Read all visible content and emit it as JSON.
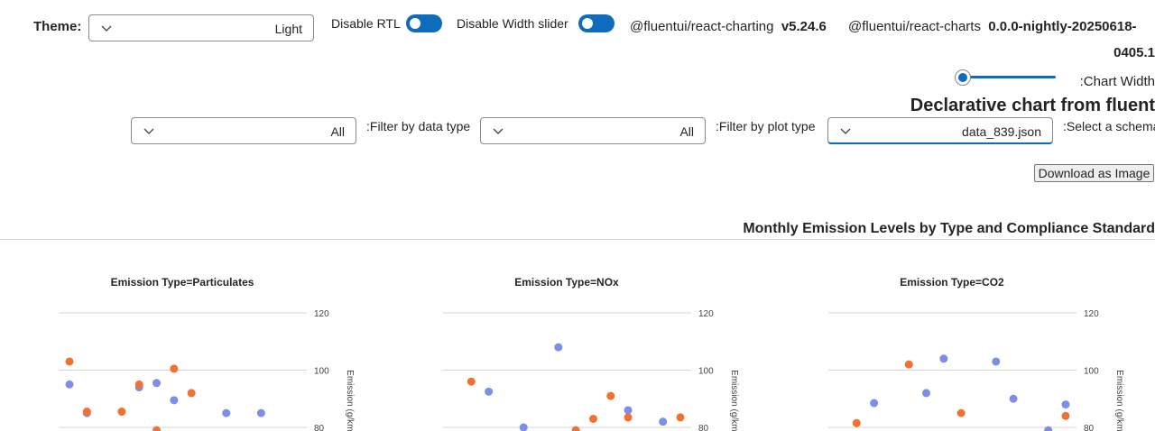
{
  "controls": {
    "theme_label": "Theme:",
    "theme_value": "Light",
    "rtl_label": "Disable RTL",
    "width_slider_label": "Disable Width slider",
    "pkg1_name": "@fluentui/react-charting",
    "pkg1_version": "v5.24.6",
    "pkg2_name": "@fluentui/react-charts",
    "pkg2_version_line1": "0.0.0-nightly-20250618-",
    "pkg2_version_line2": "0405.1",
    "chart_width_label": ":Chart Width",
    "heading": "Declarative chart from fluent",
    "filter_data_type_label": ":Filter by data type",
    "filter_data_type_value": "All",
    "filter_plot_type_label": ":Filter by plot type",
    "filter_plot_type_value": "All",
    "schema_label": ":Select a schema",
    "schema_value": "data_839.json",
    "download_label": "Download as Image"
  },
  "colors": {
    "accent": "#0f6cbd",
    "series_a": "#7b8ee8",
    "series_b": "#f07130"
  },
  "chart_data": {
    "type": "scatter",
    "title": "Monthly Emission Levels by Type and Compliance Standard",
    "ylabel": "Emission (g/km)",
    "ylim": [
      80,
      120
    ],
    "yticks": [
      120,
      100,
      80
    ],
    "panels": [
      {
        "title": "Emission Type=Particulates",
        "series": [
          {
            "color": "#7b8ee8",
            "points": [
              [
                1,
                95
              ],
              [
                2,
                85
              ],
              [
                5,
                94
              ],
              [
                6,
                95.5
              ],
              [
                7,
                89.5
              ],
              [
                10,
                85
              ],
              [
                12,
                85
              ]
            ]
          },
          {
            "color": "#f07130",
            "points": [
              [
                1,
                103
              ],
              [
                2,
                85.5
              ],
              [
                4,
                85.5
              ],
              [
                5,
                95
              ],
              [
                6,
                79
              ],
              [
                7,
                100.5
              ],
              [
                8,
                92
              ]
            ]
          }
        ]
      },
      {
        "title": "Emission Type=NOx",
        "series": [
          {
            "color": "#7b8ee8",
            "points": [
              [
                3,
                92.5
              ],
              [
                5,
                80
              ],
              [
                7,
                108
              ],
              [
                11,
                86
              ],
              [
                13,
                82
              ]
            ]
          },
          {
            "color": "#f07130",
            "points": [
              [
                2,
                96
              ],
              [
                8,
                79
              ],
              [
                9,
                83
              ],
              [
                10,
                91
              ],
              [
                11,
                83.5
              ],
              [
                14,
                83.5
              ]
            ]
          }
        ]
      },
      {
        "title": "Emission Type=CO2",
        "series": [
          {
            "color": "#7b8ee8",
            "points": [
              [
                3,
                88.5
              ],
              [
                6,
                92
              ],
              [
                7,
                104
              ],
              [
                10,
                103
              ],
              [
                11,
                90
              ],
              [
                13,
                79
              ],
              [
                14,
                88
              ]
            ]
          },
          {
            "color": "#f07130",
            "points": [
              [
                2,
                81.5
              ],
              [
                5,
                102
              ],
              [
                8,
                85
              ],
              [
                14,
                84
              ]
            ]
          }
        ]
      }
    ]
  }
}
